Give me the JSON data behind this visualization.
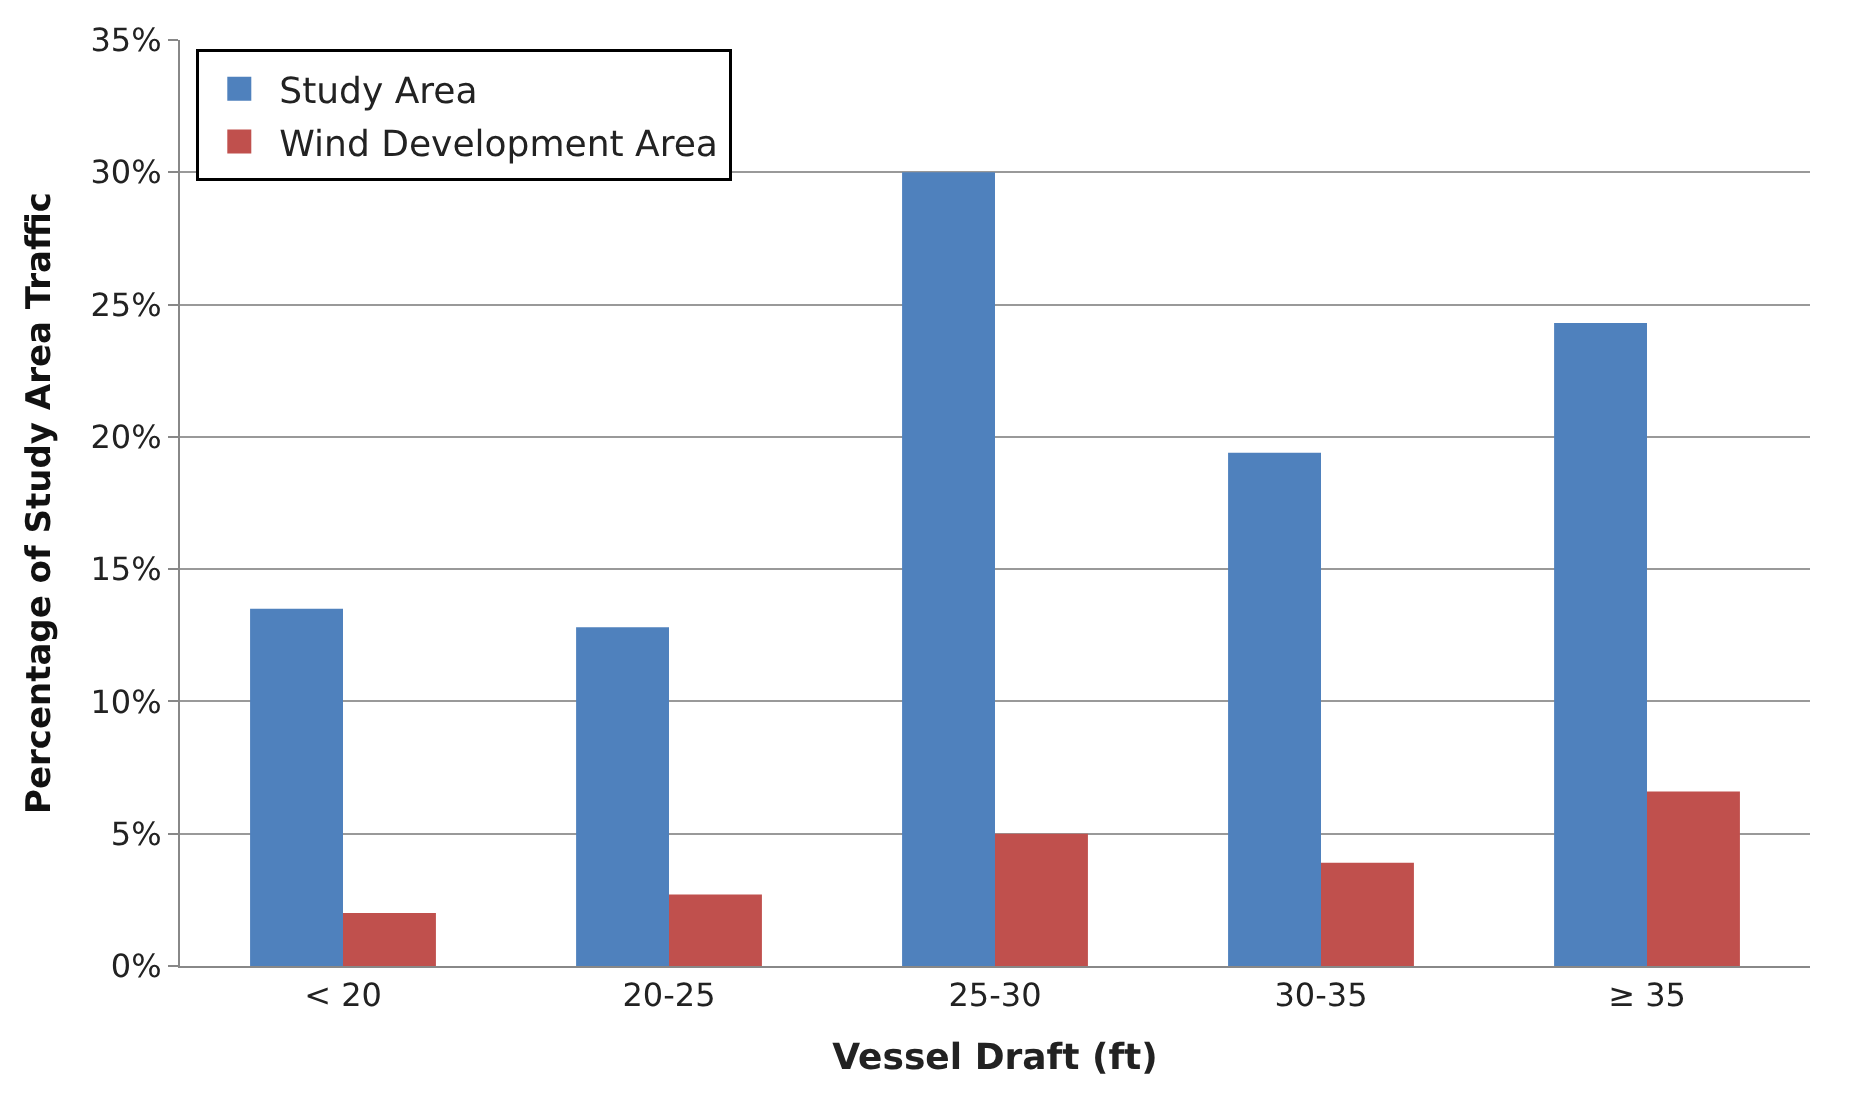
{
  "chart_data": {
    "type": "bar",
    "xlabel": "Vessel Draft (ft)",
    "ylabel": "Percentage of Study Area Traffic",
    "categories": [
      "< 20",
      "20-25",
      "25-30",
      "30-35",
      "≥ 35"
    ],
    "series": [
      {
        "name": "Study Area",
        "color": "#4f81bd",
        "values": [
          13.5,
          12.8,
          30.0,
          19.4,
          24.3
        ]
      },
      {
        "name": "Wind Development Area",
        "color": "#c0504d",
        "values": [
          2.0,
          2.7,
          5.0,
          3.9,
          6.6
        ]
      }
    ],
    "ylim": [
      0,
      35
    ],
    "yticks": [
      {
        "value": 0,
        "label": "0%"
      },
      {
        "value": 5,
        "label": "5%"
      },
      {
        "value": 10,
        "label": "10%"
      },
      {
        "value": 15,
        "label": "15%"
      },
      {
        "value": 20,
        "label": "20%"
      },
      {
        "value": 25,
        "label": "25%"
      },
      {
        "value": 30,
        "label": "30%"
      },
      {
        "value": 35,
        "label": "35%"
      }
    ],
    "grid": "y",
    "legend": "top left"
  }
}
